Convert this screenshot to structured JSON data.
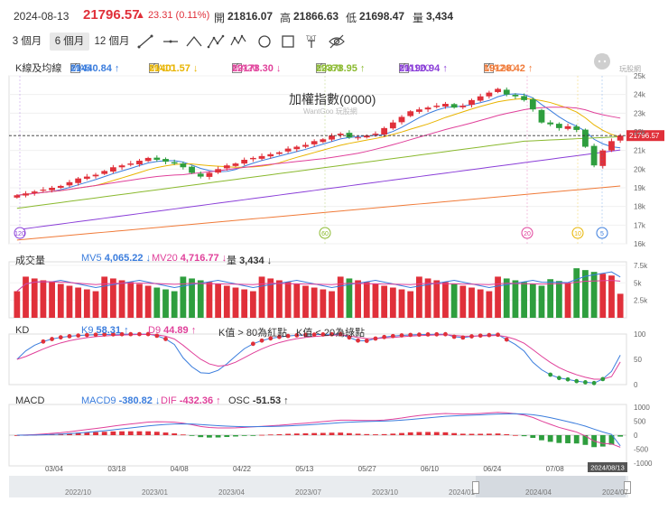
{
  "header": {
    "date": "2024-08-13",
    "price": "21796.57",
    "change": "▲ 23.31 (0.11%)",
    "open_label": "開",
    "open": "21816.07",
    "high_label": "高",
    "high": "21866.63",
    "low_label": "低",
    "low": "21698.47",
    "vol_label": "量",
    "vol": "3,434"
  },
  "tabs": [
    "3 個月",
    "6 個月",
    "12 個月"
  ],
  "active_tab": "6 個月",
  "tools": [
    "line-tool-icon",
    "horizontal-line-tool-icon",
    "arc-tool-icon",
    "abc-pattern-tool-icon",
    "abcde-pattern-tool-icon",
    "circle-tool-icon",
    "rectangle-tool-icon",
    "text-tool-icon",
    "hide-drawings-icon"
  ],
  "ma_panel": {
    "label": "K線及均線",
    "items": [
      {
        "name": "MA5",
        "value": "21440.84",
        "arrow": "↑",
        "color": "#3b7ddd"
      },
      {
        "name": "MA10",
        "value": "21401.57",
        "arrow": "↓",
        "color": "#e8b400"
      },
      {
        "name": "MA20",
        "value": "22178.30",
        "arrow": "↓",
        "color": "#e0409a"
      },
      {
        "name": "MA60",
        "value": "22378.95",
        "arrow": "↑",
        "color": "#8ab92e"
      },
      {
        "name": "MA120",
        "value": "21190.94",
        "arrow": "↑",
        "color": "#8a3ed8"
      },
      {
        "name": "MA240",
        "value": "19128.42",
        "arrow": "↑",
        "color": "#f07a38"
      }
    ]
  },
  "chart_title": "加權指數(0000)",
  "watermark": "WantGoo 玩股網",
  "logo_text": "玩股網",
  "last_price_tag": "21796.57",
  "price_axis": [
    "25k",
    "24k",
    "23k",
    "22k",
    "21k",
    "20k",
    "19k",
    "18k",
    "17k",
    "16k"
  ],
  "ma_markers": [
    "120",
    "60",
    "20",
    "10",
    "5"
  ],
  "volume_panel": {
    "label": "成交量",
    "items": [
      {
        "name": "MV5",
        "value": "4,065.22",
        "arrow": "↓",
        "color": "#3b7ddd"
      },
      {
        "name": "MV20",
        "value": "4,716.77",
        "arrow": "↓",
        "color": "#e0409a"
      },
      {
        "name": "量",
        "value": "3,434",
        "arrow": "↓",
        "color": "#333333"
      }
    ],
    "axis": [
      "7.5k",
      "5k",
      "2.5k"
    ]
  },
  "kd_panel": {
    "label": "KD",
    "items": [
      {
        "name": "K9",
        "value": "58.31",
        "arrow": "↑",
        "color": "#3b7ddd"
      },
      {
        "name": "D9",
        "value": "44.89",
        "arrow": "↑",
        "color": "#e0409a"
      }
    ],
    "notes": [
      "K值 > 80為紅點",
      "K值 < 20為綠點"
    ],
    "axis": [
      "100",
      "50",
      "0"
    ]
  },
  "macd_panel": {
    "label": "MACD",
    "items": [
      {
        "name": "MACD9",
        "value": "-380.82",
        "arrow": "↓",
        "color": "#3b7ddd"
      },
      {
        "name": "DIF",
        "value": "-432.36",
        "arrow": "↑",
        "color": "#e0409a"
      },
      {
        "name": "OSC",
        "value": "-51.53",
        "arrow": "↑",
        "color": "#333333"
      }
    ],
    "axis": [
      "1000",
      "500",
      "0",
      "-500",
      "-1000"
    ]
  },
  "date_axis": [
    "03/04",
    "03/18",
    "04/08",
    "04/22",
    "05/13",
    "05/27",
    "06/10",
    "06/24",
    "07/08",
    "07/29"
  ],
  "last_date_tag": "2024/08/13",
  "navigator_axis": [
    "2022/10",
    "2023/01",
    "2023/04",
    "2023/07",
    "2023/10",
    "2024/01",
    "2024/04",
    "2024/07"
  ],
  "chart_data": {
    "type": "candlestick",
    "title": "加權指數(0000)",
    "ylim": [
      16000,
      25000
    ],
    "close_series_approx": [
      18600,
      18700,
      18800,
      18900,
      19000,
      19100,
      19300,
      19500,
      19600,
      19700,
      19900,
      20100,
      20200,
      20300,
      20450,
      20600,
      20500,
      20400,
      20300,
      20100,
      19800,
      19600,
      19800,
      20000,
      20200,
      20300,
      20500,
      20600,
      20700,
      20800,
      20900,
      21100,
      21200,
      21300,
      21500,
      21600,
      21800,
      21900,
      21700,
      21700,
      21800,
      21900,
      22200,
      22500,
      22800,
      23100,
      23200,
      23300,
      23400,
      23500,
      23300,
      23400,
      23700,
      23900,
      24100,
      24300,
      24000,
      23900,
      23700,
      23200,
      22500,
      22400,
      22200,
      22300,
      22100,
      21200,
      20200,
      21000,
      21500,
      21796.57
    ],
    "volume_last": 3434,
    "kd_last": {
      "K": 58.31,
      "D": 44.89
    },
    "macd_last": {
      "MACD9": -380.82,
      "DIF": -432.36,
      "OSC": -51.53
    }
  }
}
